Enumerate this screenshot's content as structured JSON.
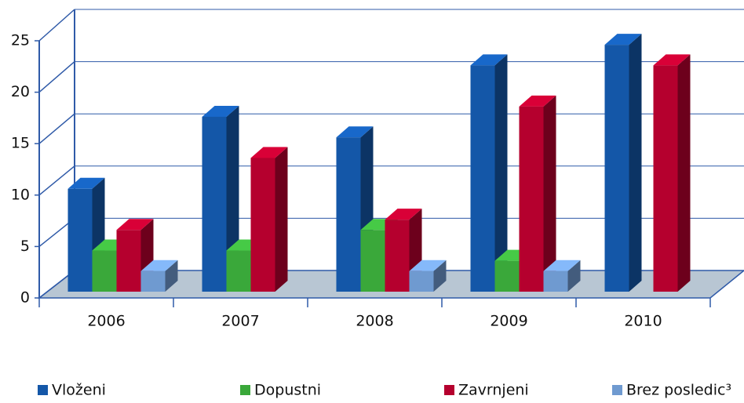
{
  "chart_data": {
    "type": "bar3d",
    "categories": [
      "2006",
      "2007",
      "2008",
      "2009",
      "2010"
    ],
    "series": [
      {
        "name": "Vloženi",
        "color": "#1457a8",
        "values": [
          10,
          17,
          15,
          22,
          24
        ]
      },
      {
        "name": "Dopustni",
        "color": "#3aa83a",
        "values": [
          4,
          4,
          6,
          3,
          0
        ]
      },
      {
        "name": "Zavrnjeni",
        "color": "#b5002e",
        "values": [
          6,
          13,
          7,
          18,
          22
        ]
      },
      {
        "name": "Brez posledic³",
        "color": "#6f9ad0",
        "values": [
          2,
          0,
          2,
          2,
          0
        ]
      }
    ],
    "ylim": [
      0,
      25
    ],
    "yticks": [
      0,
      5,
      10,
      15,
      20,
      25
    ],
    "grid": true,
    "legend": "bottom"
  }
}
